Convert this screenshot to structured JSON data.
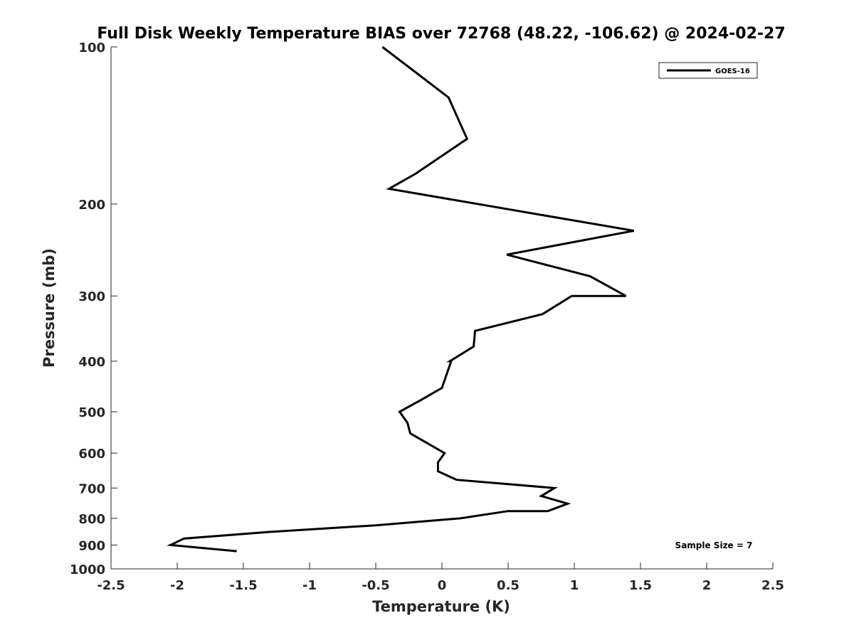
{
  "chart_data": {
    "type": "line",
    "title": "Full Disk Weekly Temperature BIAS over 72768 (48.22, -106.62) @ 2024-02-27",
    "xlabel": "Temperature (K)",
    "ylabel": "Pressure (mb)",
    "xlim": [
      -2.5,
      2.5
    ],
    "ylim": [
      1000,
      100
    ],
    "y_scale": "log",
    "x_ticks": [
      -2.5,
      -2,
      -1.5,
      -1,
      -0.5,
      0,
      0.5,
      1,
      1.5,
      2,
      2.5
    ],
    "x_tick_labels": [
      "-2.5",
      "-2",
      "-1.5",
      "-1",
      "-0.5",
      "0",
      "0.5",
      "1",
      "1.5",
      "2",
      "2.5"
    ],
    "y_ticks": [
      100,
      200,
      300,
      400,
      500,
      600,
      700,
      800,
      900,
      1000
    ],
    "y_tick_labels": [
      "100",
      "200",
      "300",
      "400",
      "500",
      "600",
      "700",
      "800",
      "900",
      "1000"
    ],
    "grid": false,
    "legend_position": "top-right",
    "series": [
      {
        "name": "GOES-16",
        "color": "#000000",
        "points": [
          {
            "x": -0.45,
            "y": 100
          },
          {
            "x": 0.05,
            "y": 125
          },
          {
            "x": 0.19,
            "y": 150
          },
          {
            "x": -0.2,
            "y": 175
          },
          {
            "x": -0.4,
            "y": 187
          },
          {
            "x": 1.45,
            "y": 225
          },
          {
            "x": 0.49,
            "y": 250
          },
          {
            "x": 1.12,
            "y": 275
          },
          {
            "x": 1.39,
            "y": 300
          },
          {
            "x": 0.98,
            "y": 300
          },
          {
            "x": 0.76,
            "y": 325
          },
          {
            "x": 0.25,
            "y": 350
          },
          {
            "x": 0.24,
            "y": 375
          },
          {
            "x": 0.06,
            "y": 400
          },
          {
            "x": 0.07,
            "y": 400
          },
          {
            "x": 0.0,
            "y": 450
          },
          {
            "x": -0.16,
            "y": 475
          },
          {
            "x": -0.32,
            "y": 500
          },
          {
            "x": -0.26,
            "y": 525
          },
          {
            "x": -0.24,
            "y": 550
          },
          {
            "x": 0.02,
            "y": 600
          },
          {
            "x": -0.03,
            "y": 625
          },
          {
            "x": -0.03,
            "y": 650
          },
          {
            "x": 0.11,
            "y": 675
          },
          {
            "x": 0.85,
            "y": 700
          },
          {
            "x": 0.75,
            "y": 725
          },
          {
            "x": 0.95,
            "y": 750
          },
          {
            "x": 0.8,
            "y": 775
          },
          {
            "x": 0.5,
            "y": 775
          },
          {
            "x": 0.14,
            "y": 800
          },
          {
            "x": -0.5,
            "y": 825
          },
          {
            "x": -1.32,
            "y": 850
          },
          {
            "x": -1.95,
            "y": 875
          },
          {
            "x": -2.05,
            "y": 900
          },
          {
            "x": -1.55,
            "y": 925
          }
        ]
      }
    ],
    "annotations": [
      "Sample Size = 7"
    ]
  }
}
